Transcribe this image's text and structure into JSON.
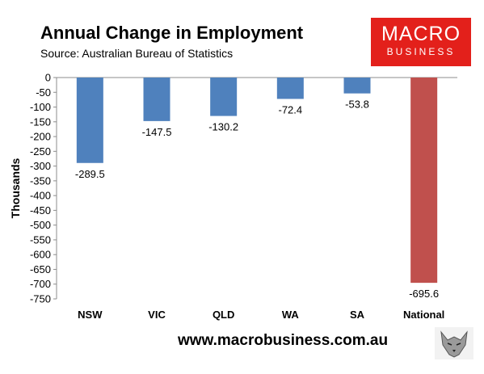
{
  "header": {
    "title": "Annual Change in Employment",
    "subtitle": "Source: Australian Bureau of Statistics"
  },
  "logo": {
    "main": "MACRO",
    "sub": "BUSINESS"
  },
  "footer": {
    "url": "www.macrobusiness.com.au"
  },
  "colors": {
    "bar": "#4f81bd",
    "highlight": "#c0504d",
    "logo_bg": "#e3201b"
  },
  "chart_data": {
    "type": "bar",
    "title": "Annual Change in Employment",
    "subtitle": "Source: Australian Bureau of Statistics",
    "categories": [
      "NSW",
      "VIC",
      "QLD",
      "WA",
      "SA",
      "National"
    ],
    "values": [
      -289.5,
      -147.5,
      -130.2,
      -72.4,
      -53.8,
      -695.6
    ],
    "data_labels": [
      "-289.5",
      "-147.5",
      "-130.2",
      "-72.4",
      "-53.8",
      "-695.6"
    ],
    "highlight_category": "National",
    "ylabel": "Thousands",
    "xlabel": "",
    "ylim": [
      -750,
      0
    ],
    "yticks": [
      0,
      -50,
      -100,
      -150,
      -200,
      -250,
      -300,
      -350,
      -400,
      -450,
      -500,
      -550,
      -600,
      -650,
      -700,
      -750
    ],
    "grid": false,
    "legend": "none"
  }
}
